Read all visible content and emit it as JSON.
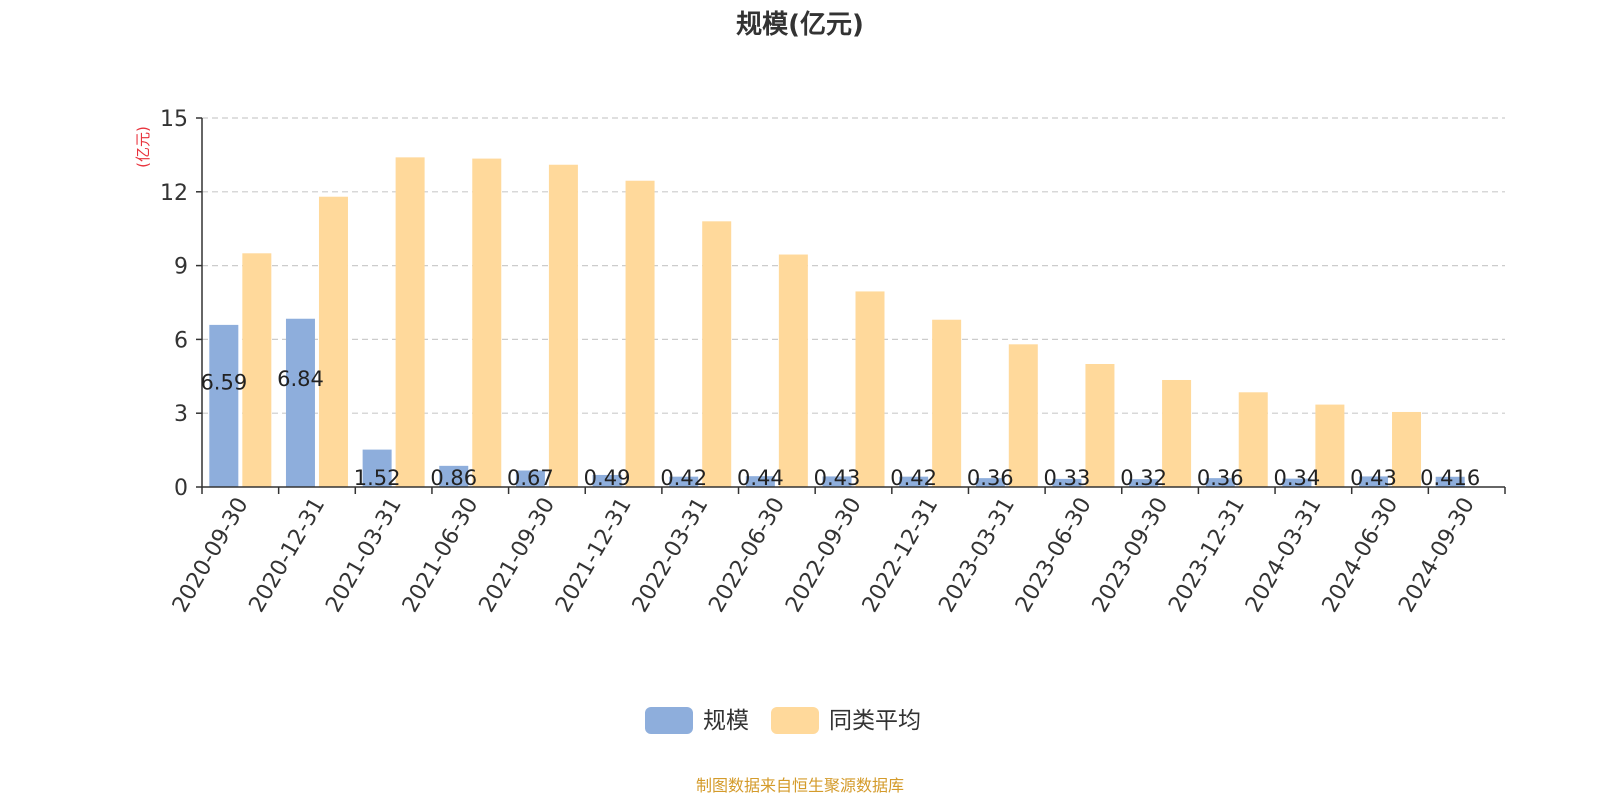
{
  "chart_data": {
    "type": "bar",
    "title": "规模(亿元)",
    "ylabel": "(亿元)",
    "xlabel": "",
    "ylim": [
      0,
      15
    ],
    "yticks": [
      0,
      3,
      6,
      9,
      12,
      15
    ],
    "grid": true,
    "legend_position": "bottom-center",
    "categories": [
      "2020-09-30",
      "2020-12-31",
      "2021-03-31",
      "2021-06-30",
      "2021-09-30",
      "2021-12-31",
      "2022-03-31",
      "2022-06-30",
      "2022-09-30",
      "2022-12-31",
      "2023-03-31",
      "2023-06-30",
      "2023-09-30",
      "2023-12-31",
      "2024-03-31",
      "2024-06-30",
      "2024-09-30"
    ],
    "series": [
      {
        "name": "规模",
        "color": "#8eaedc",
        "values": [
          6.59,
          6.84,
          1.52,
          0.86,
          0.67,
          0.49,
          0.42,
          0.44,
          0.43,
          0.42,
          0.36,
          0.33,
          0.32,
          0.36,
          0.34,
          0.43,
          0.416
        ],
        "labels": [
          "6.59",
          "6.84",
          "1.52",
          "0.86",
          "0.67",
          "0.49",
          "0.42",
          "0.44",
          "0.43",
          "0.42",
          "0.36",
          "0.33",
          "0.32",
          "0.36",
          "0.34",
          "0.43",
          "0.416"
        ]
      },
      {
        "name": "同类平均",
        "color": "#ffd99b",
        "values": [
          9.5,
          11.8,
          13.4,
          13.35,
          13.1,
          12.45,
          10.8,
          9.45,
          7.95,
          6.8,
          5.8,
          5.0,
          4.35,
          3.85,
          3.35,
          3.05,
          null
        ]
      }
    ]
  },
  "footer": {
    "source": "制图数据来自恒生聚源数据库"
  },
  "colors": {
    "ylabel": "#e8323c",
    "footer": "#d49b2b",
    "axis": "#333333",
    "grid": "#cccccc"
  }
}
